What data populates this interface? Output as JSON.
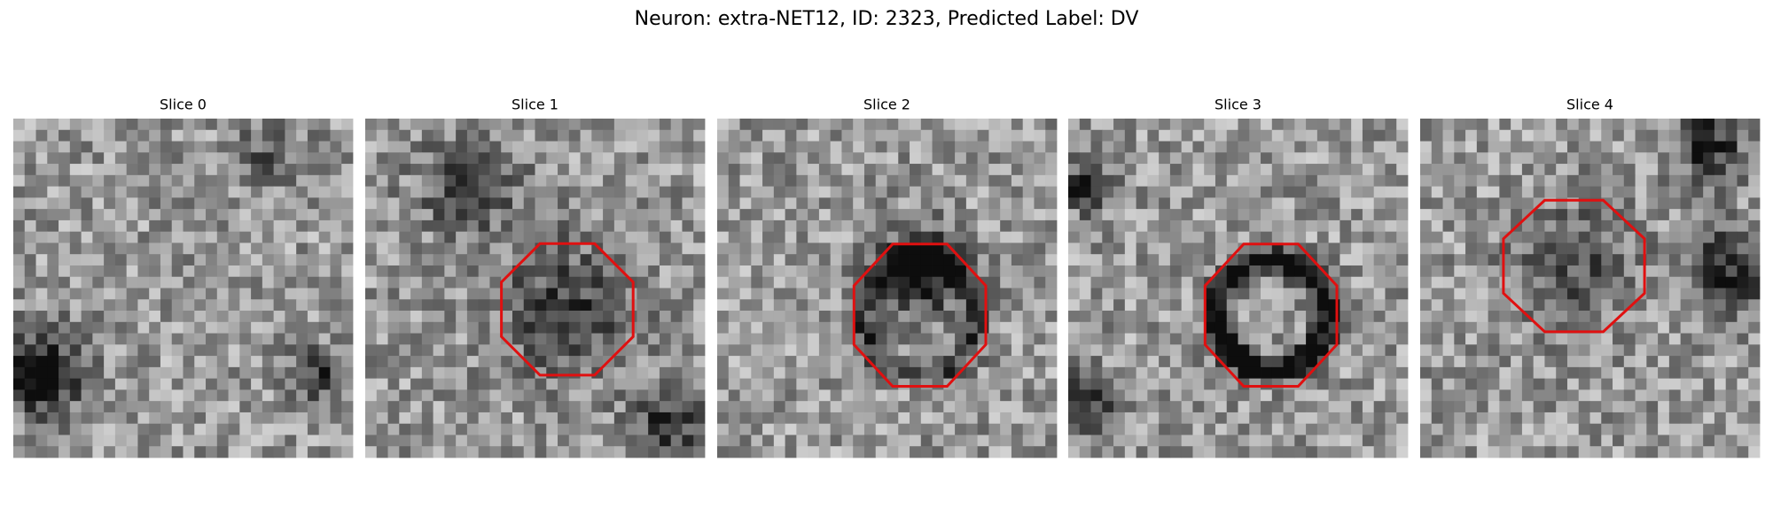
{
  "title": "Neuron: extra-NET12, ID: 2323, Predicted Label: DV",
  "panels": [
    {
      "title": "Slice 0"
    },
    {
      "title": "Slice 1"
    },
    {
      "title": "Slice 2"
    },
    {
      "title": "Slice 3"
    },
    {
      "title": "Slice 4"
    }
  ]
}
